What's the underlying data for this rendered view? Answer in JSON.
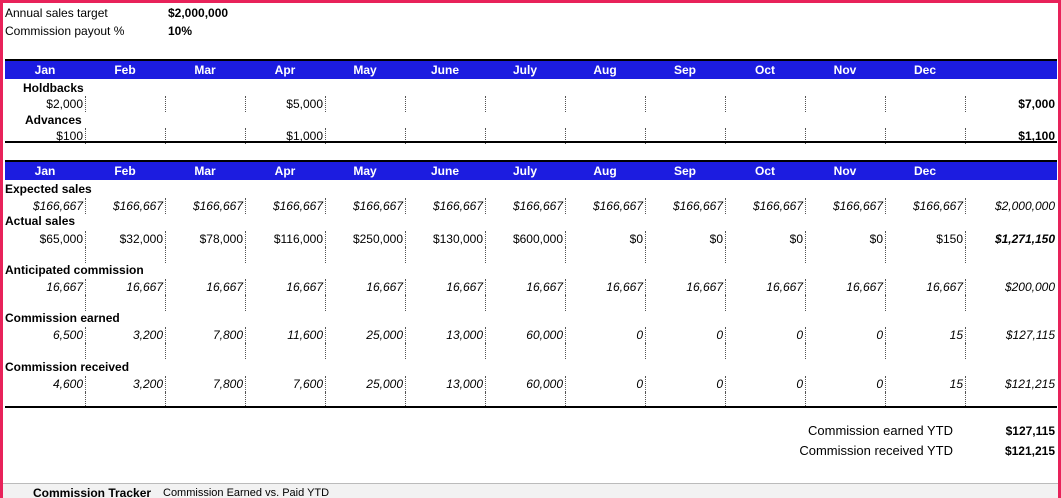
{
  "settings": [
    {
      "label": "Annual sales target",
      "value": "$2,000,000"
    },
    {
      "label": "Commission payout %",
      "value": "10%"
    }
  ],
  "holdbacks": {
    "header": [
      "Jan",
      "Feb",
      "Mar",
      "Apr",
      "May",
      "June",
      "July",
      "Aug",
      "Sep",
      "Oct",
      "Nov",
      "Dec"
    ],
    "rows": [
      {
        "label": "Holdbacks",
        "cells": [
          "$2,000",
          null,
          null,
          "$5,000",
          null,
          null,
          null,
          null,
          null,
          null,
          null,
          null
        ],
        "total": "$7,000"
      },
      {
        "label": "Advances",
        "cells": [
          "$100",
          null,
          null,
          "$1,000",
          null,
          null,
          null,
          null,
          null,
          null,
          null,
          null
        ],
        "total": "$1,100"
      }
    ]
  },
  "sales": {
    "header": [
      "Jan",
      "Feb",
      "Mar",
      "Apr",
      "May",
      "June",
      "July",
      "Aug",
      "Sep",
      "Oct",
      "Nov",
      "Dec"
    ],
    "rows": [
      {
        "label": "Expected sales",
        "cells": [
          "$166,667",
          "$166,667",
          "$166,667",
          "$166,667",
          "$166,667",
          "$166,667",
          "$166,667",
          "$166,667",
          "$166,667",
          "$166,667",
          "$166,667",
          "$166,667"
        ],
        "total": "$2,000,000"
      },
      {
        "label": "Actual sales",
        "cells": [
          "$65,000",
          "$32,000",
          "$78,000",
          "$116,000",
          "$250,000",
          "$130,000",
          "$600,000",
          "$0",
          "$0",
          "$0",
          "$0",
          "$150"
        ],
        "total": "$1,271,150"
      },
      {
        "label": "Anticipated commission",
        "cells": [
          "16,667",
          "16,667",
          "16,667",
          "16,667",
          "16,667",
          "16,667",
          "16,667",
          "16,667",
          "16,667",
          "16,667",
          "16,667",
          "16,667"
        ],
        "total": "$200,000"
      },
      {
        "label": "Commission earned",
        "cells": [
          "6,500",
          "3,200",
          "7,800",
          "11,600",
          "25,000",
          "13,000",
          "60,000",
          "0",
          "0",
          "0",
          "0",
          "15"
        ],
        "total": "$127,115"
      },
      {
        "label": "Commission received",
        "cells": [
          "4,600",
          "3,200",
          "7,800",
          "7,600",
          "25,000",
          "13,000",
          "60,000",
          "0",
          "0",
          "0",
          "0",
          "15"
        ],
        "total": "$121,215"
      }
    ]
  },
  "summary": [
    {
      "label": "Commission earned YTD",
      "value": "$127,115"
    },
    {
      "label": "Commission received YTD",
      "value": "$121,215"
    }
  ],
  "tabs": [
    "Commission Tracker",
    "Commission Earned vs. Paid YTD"
  ]
}
